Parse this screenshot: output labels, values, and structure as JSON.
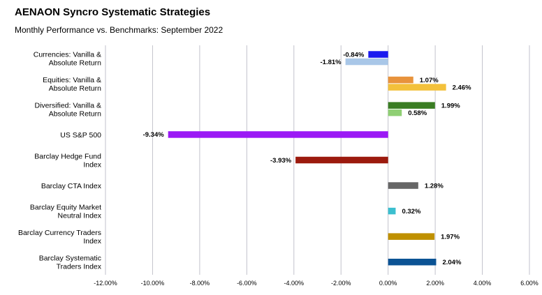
{
  "title": "AENAON Syncro Systematic Strategies",
  "subtitle": "Monthly Performance vs. Benchmarks: September 2022",
  "chart_data": {
    "type": "bar",
    "orientation": "horizontal",
    "title": "AENAON Syncro Systematic Strategies",
    "subtitle": "Monthly Performance vs. Benchmarks: September 2022",
    "xlim": [
      -12,
      6
    ],
    "ticks": [
      -12,
      -10,
      -8,
      -6,
      -4,
      -2,
      0,
      2,
      4,
      6
    ],
    "tick_labels": [
      "-12.00%",
      "-10.00%",
      "-8.00%",
      "-6.00%",
      "-4.00%",
      "-2.00%",
      "0.00%",
      "2.00%",
      "4.00%",
      "6.00%"
    ],
    "grid": "vertical",
    "categories": [
      {
        "label": [
          "Currencies: Vanilla &",
          "Absolute Return"
        ],
        "bars": [
          {
            "value": -0.84,
            "label": "-0.84%",
            "color": "#1a1aef"
          },
          {
            "value": -1.81,
            "label": "-1.81%",
            "color": "#a9c7e8"
          }
        ]
      },
      {
        "label": [
          "Equities: Vanilla &",
          "Absolute Return"
        ],
        "bars": [
          {
            "value": 1.07,
            "label": "1.07%",
            "color": "#e8933c"
          },
          {
            "value": 2.46,
            "label": "2.46%",
            "color": "#f3c13b"
          }
        ]
      },
      {
        "label": [
          "Diversified: Vanilla &",
          "Absolute Return"
        ],
        "bars": [
          {
            "value": 1.99,
            "label": "1.99%",
            "color": "#3a7d23"
          },
          {
            "value": 0.58,
            "label": "0.58%",
            "color": "#8fcf74"
          }
        ]
      },
      {
        "label": [
          "US S&P 500"
        ],
        "bars": [
          {
            "value": -9.34,
            "label": "-9.34%",
            "color": "#9b19f5"
          }
        ]
      },
      {
        "label": [
          "Barclay Hedge Fund",
          "Index"
        ],
        "bars": [
          {
            "value": -3.93,
            "label": "-3.93%",
            "color": "#9c1a0e"
          }
        ]
      },
      {
        "label": [
          "Barclay CTA Index"
        ],
        "bars": [
          {
            "value": 1.28,
            "label": "1.28%",
            "color": "#666666"
          }
        ]
      },
      {
        "label": [
          "Barclay Equity Market",
          "Neutral Index"
        ],
        "bars": [
          {
            "value": 0.32,
            "label": "0.32%",
            "color": "#3bbfcf"
          }
        ]
      },
      {
        "label": [
          "Barclay Currency Traders",
          "Index"
        ],
        "bars": [
          {
            "value": 1.97,
            "label": "1.97%",
            "color": "#bf9000"
          }
        ]
      },
      {
        "label": [
          "Barclay Systematic",
          "Traders Index"
        ],
        "bars": [
          {
            "value": 2.04,
            "label": "2.04%",
            "color": "#0b5394"
          }
        ]
      }
    ]
  }
}
